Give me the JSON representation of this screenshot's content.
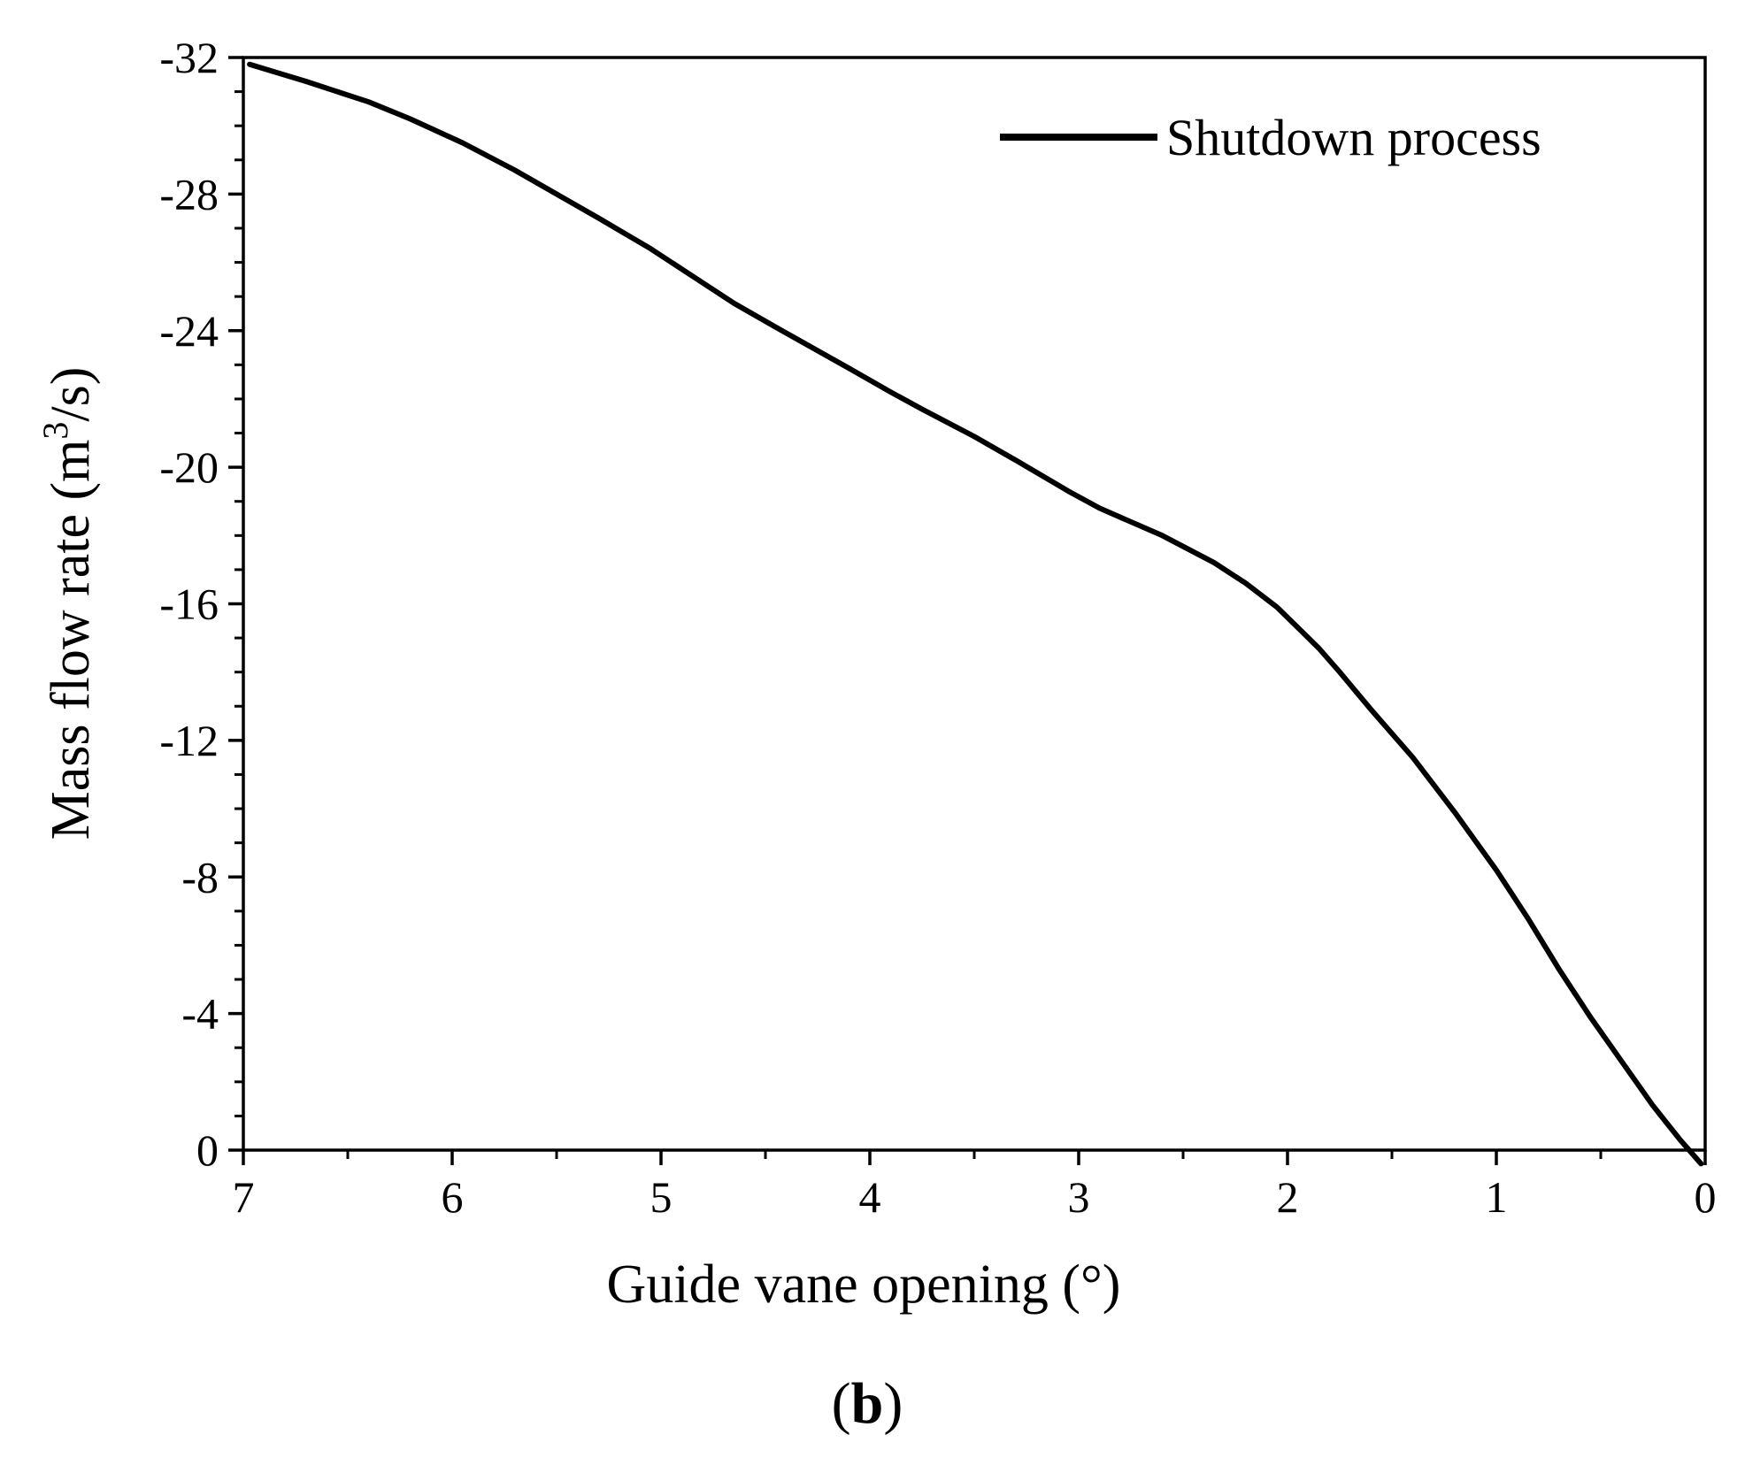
{
  "chart_data": {
    "type": "line",
    "title": "",
    "xlabel": "Guide vane opening  (°)",
    "ylabel_main": "Mass flow rate (m",
    "ylabel_sup": "3",
    "ylabel_tail": "/s)",
    "panel_label_open": "(",
    "panel_label_letter": "b",
    "panel_label_close": ")",
    "xlim": [
      7,
      0
    ],
    "ylim": [
      0,
      -32
    ],
    "x_reversed": true,
    "y_reversed": true,
    "x_ticks": [
      7,
      6,
      5,
      4,
      3,
      2,
      1,
      0
    ],
    "x_tick_labels": [
      "7",
      "6",
      "5",
      "4",
      "3",
      "2",
      "1",
      "0"
    ],
    "y_ticks": [
      -32,
      -28,
      -24,
      -20,
      -16,
      -12,
      -8,
      -4,
      0
    ],
    "y_tick_labels": [
      "-32",
      "-28",
      "-24",
      "-20",
      "-16",
      "-12",
      "-8",
      "-4",
      "0"
    ],
    "grid": false,
    "legend_position": "top-right",
    "series": [
      {
        "name": "Shutdown process",
        "color": "#000000",
        "x": [
          6.97,
          6.7,
          6.4,
          6.2,
          5.95,
          5.7,
          5.5,
          5.3,
          5.05,
          4.85,
          4.65,
          4.45,
          4.1,
          3.9,
          3.75,
          3.5,
          3.3,
          3.05,
          2.9,
          2.6,
          2.35,
          2.2,
          2.05,
          1.95,
          1.85,
          1.75,
          1.6,
          1.4,
          1.2,
          1.0,
          0.85,
          0.7,
          0.55,
          0.4,
          0.25,
          0.12,
          0.02
        ],
        "y": [
          -31.8,
          -31.3,
          -30.7,
          -30.2,
          -29.5,
          -28.7,
          -28.0,
          -27.3,
          -26.4,
          -25.6,
          -24.8,
          -24.1,
          -22.9,
          -22.2,
          -21.7,
          -20.9,
          -20.2,
          -19.3,
          -18.8,
          -18.0,
          -17.2,
          -16.6,
          -15.9,
          -15.3,
          -14.7,
          -14.0,
          -12.9,
          -11.5,
          -9.9,
          -8.2,
          -6.8,
          -5.3,
          -3.9,
          -2.6,
          -1.3,
          -0.3,
          0.4
        ]
      }
    ]
  }
}
